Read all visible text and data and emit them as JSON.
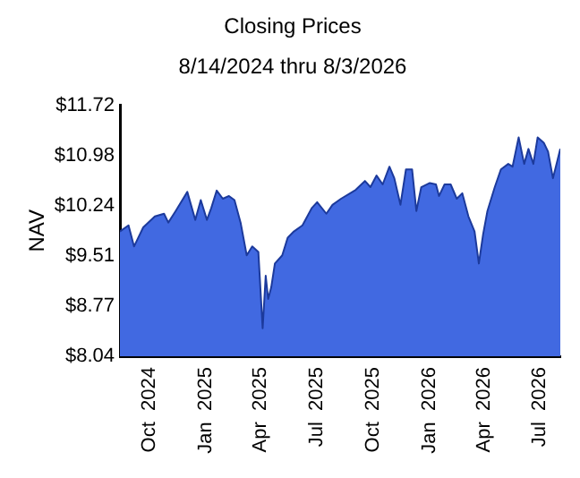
{
  "chart_data": {
    "type": "area",
    "title": "Closing Prices",
    "subtitle": "8/14/2024 thru 8/3/2026",
    "ylabel": "NAV",
    "x": [
      "2024-08-14",
      "2024-08-28",
      "2024-09-06",
      "2024-09-21",
      "2024-10-10",
      "2024-10-25",
      "2024-11-01",
      "2024-11-13",
      "2024-12-02",
      "2024-12-15",
      "2024-12-24",
      "2025-01-03",
      "2025-01-10",
      "2025-01-19",
      "2025-01-29",
      "2025-02-08",
      "2025-02-17",
      "2025-02-27",
      "2025-03-09",
      "2025-03-18",
      "2025-03-28",
      "2025-04-04",
      "2025-04-09",
      "2025-04-13",
      "2025-04-18",
      "2025-04-24",
      "2025-05-06",
      "2025-05-15",
      "2025-05-25",
      "2025-06-08",
      "2025-06-23",
      "2025-07-02",
      "2025-07-17",
      "2025-07-27",
      "2025-08-10",
      "2025-08-25",
      "2025-09-03",
      "2025-09-18",
      "2025-09-27",
      "2025-10-07",
      "2025-10-17",
      "2025-10-28",
      "2025-11-05",
      "2025-11-15",
      "2025-11-24",
      "2025-12-04",
      "2025-12-11",
      "2025-12-19",
      "2026-01-02",
      "2026-01-12",
      "2026-01-17",
      "2026-01-26",
      "2026-02-05",
      "2026-02-15",
      "2026-02-24",
      "2026-03-06",
      "2026-03-16",
      "2026-03-23",
      "2026-03-30",
      "2026-04-06",
      "2026-04-18",
      "2026-04-28",
      "2026-05-10",
      "2026-05-17",
      "2026-05-27",
      "2026-06-05",
      "2026-06-12",
      "2026-06-20",
      "2026-06-27",
      "2026-07-07",
      "2026-07-14",
      "2026-07-22",
      "2026-08-03"
    ],
    "series": [
      {
        "color": "#4169e1",
        "values": [
          9.87,
          9.96,
          9.65,
          9.93,
          10.09,
          10.13,
          10.0,
          10.17,
          10.45,
          10.04,
          10.33,
          10.04,
          10.21,
          10.47,
          10.35,
          10.39,
          10.33,
          10.0,
          9.52,
          9.65,
          9.57,
          8.45,
          9.22,
          8.88,
          9.05,
          9.4,
          9.52,
          9.78,
          9.87,
          9.96,
          10.21,
          10.3,
          10.13,
          10.26,
          10.35,
          10.43,
          10.48,
          10.61,
          10.52,
          10.69,
          10.56,
          10.82,
          10.65,
          10.26,
          10.78,
          10.78,
          10.17,
          10.52,
          10.58,
          10.56,
          10.39,
          10.56,
          10.56,
          10.35,
          10.43,
          10.09,
          9.87,
          9.4,
          9.83,
          10.17,
          10.52,
          10.78,
          10.86,
          10.82,
          11.25,
          10.86,
          11.08,
          10.86,
          11.25,
          11.17,
          11.04,
          10.65,
          11.08
        ]
      }
    ],
    "xlim": [
      "2024-08-14",
      "2026-08-03"
    ],
    "xticks": [
      {
        "value": "2024-10-01",
        "label": "Oct  2024"
      },
      {
        "value": "2025-01-01",
        "label": "Jan  2025"
      },
      {
        "value": "2025-04-01",
        "label": "Apr  2025"
      },
      {
        "value": "2025-07-01",
        "label": "Jul  2025"
      },
      {
        "value": "2025-10-01",
        "label": "Oct  2025"
      },
      {
        "value": "2026-01-01",
        "label": "Jan  2026"
      },
      {
        "value": "2026-04-01",
        "label": "Apr  2026"
      },
      {
        "value": "2026-07-01",
        "label": "Jul  2026"
      }
    ],
    "ylim": [
      8.04,
      11.72
    ],
    "yticks": [
      {
        "value": 8.04,
        "label": "$8.04"
      },
      {
        "value": 8.77,
        "label": "$8.77"
      },
      {
        "value": 9.51,
        "label": "$9.51"
      },
      {
        "value": 10.24,
        "label": "$10.24"
      },
      {
        "value": 10.98,
        "label": "$10.98"
      },
      {
        "value": 11.72,
        "label": "$11.72"
      }
    ],
    "grid": false,
    "legend": false
  }
}
